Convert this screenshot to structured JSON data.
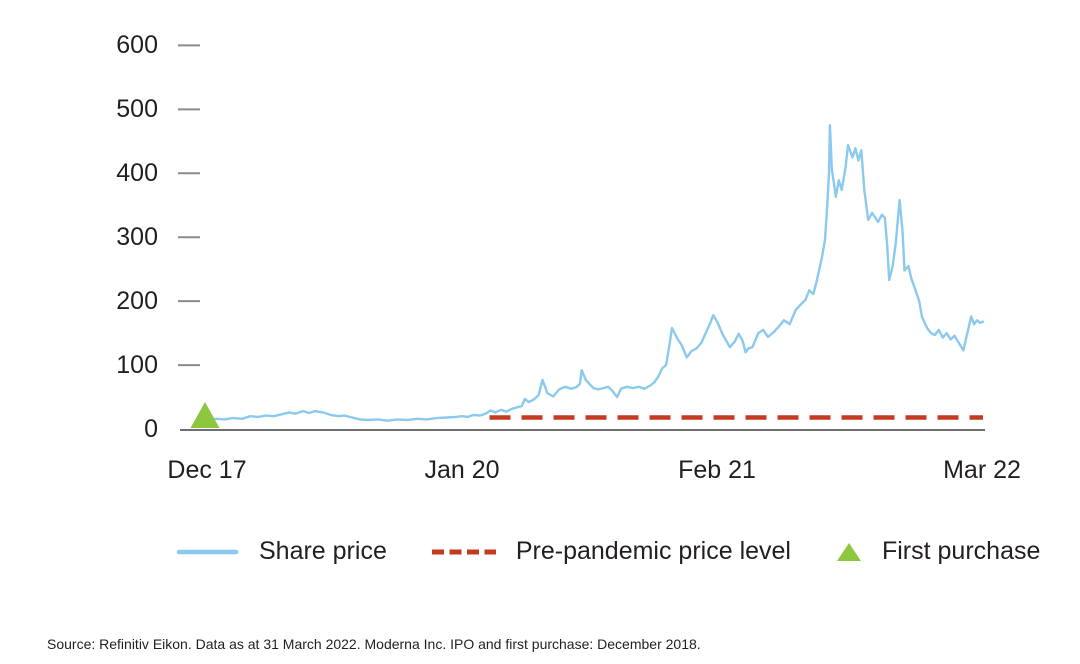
{
  "source": "Source: Refinitiv Eikon. Data as at 31 March 2022. Moderna Inc. IPO and first purchase: December 2018.",
  "colors": {
    "share_price_line": "#8BCAEE",
    "pre_pandemic_dash": "#C23A20",
    "first_purchase_marker": "#8DC63F",
    "axis_text": "#231f20",
    "tick_mark": "#8A8B8E",
    "axis_line": "#6E6F72"
  },
  "chart_data": {
    "type": "line",
    "title": "",
    "xlabel": "",
    "ylabel": "",
    "grid": false,
    "legend_position": "bottom",
    "ylim": [
      0,
      600
    ],
    "y_ticks": [
      0,
      100,
      200,
      300,
      400,
      500,
      600
    ],
    "x_tick_labels": [
      "Dec 17",
      "Jan 20",
      "Feb 21",
      "Mar 22"
    ],
    "x_tick_positions_months": [
      0,
      13,
      26,
      39
    ],
    "xlim_months": [
      0,
      39.55
    ],
    "series": [
      {
        "name": "Share price",
        "type": "line",
        "color": "#8BCAEE",
        "x_unit": "months after first axis label (13 months per label interval)",
        "points": [
          [
            0,
            18
          ],
          [
            0.15,
            15
          ],
          [
            0.5,
            16
          ],
          [
            0.9,
            15
          ],
          [
            1.3,
            17
          ],
          [
            1.8,
            16
          ],
          [
            2.2,
            20
          ],
          [
            2.6,
            19
          ],
          [
            3,
            21
          ],
          [
            3.4,
            20
          ],
          [
            3.8,
            23
          ],
          [
            4.2,
            26
          ],
          [
            4.5,
            24
          ],
          [
            4.9,
            28
          ],
          [
            5.2,
            25
          ],
          [
            5.5,
            28
          ],
          [
            5.9,
            26
          ],
          [
            6.3,
            22
          ],
          [
            6.7,
            20
          ],
          [
            7,
            21
          ],
          [
            7.4,
            18
          ],
          [
            7.8,
            15
          ],
          [
            8.2,
            14
          ],
          [
            8.7,
            15
          ],
          [
            9.2,
            13
          ],
          [
            9.7,
            15
          ],
          [
            10.2,
            14
          ],
          [
            10.7,
            16
          ],
          [
            11.2,
            15
          ],
          [
            11.7,
            17
          ],
          [
            12.2,
            18
          ],
          [
            12.7,
            19
          ],
          [
            13,
            20
          ],
          [
            13.3,
            19
          ],
          [
            13.6,
            22
          ],
          [
            13.9,
            21
          ],
          [
            14.2,
            24
          ],
          [
            14.45,
            29
          ],
          [
            14.7,
            26
          ],
          [
            15,
            30
          ],
          [
            15.25,
            27
          ],
          [
            15.5,
            31
          ],
          [
            15.8,
            34
          ],
          [
            16.05,
            36
          ],
          [
            16.2,
            47
          ],
          [
            16.4,
            42
          ],
          [
            16.65,
            46
          ],
          [
            16.9,
            53
          ],
          [
            17.1,
            77
          ],
          [
            17.35,
            56
          ],
          [
            17.65,
            51
          ],
          [
            17.95,
            62
          ],
          [
            18.25,
            66
          ],
          [
            18.55,
            63
          ],
          [
            18.8,
            65
          ],
          [
            19,
            70
          ],
          [
            19.1,
            92
          ],
          [
            19.3,
            77
          ],
          [
            19.5,
            70
          ],
          [
            19.7,
            64
          ],
          [
            19.95,
            62
          ],
          [
            20.2,
            64
          ],
          [
            20.45,
            66
          ],
          [
            20.65,
            60
          ],
          [
            20.9,
            50
          ],
          [
            21.1,
            63
          ],
          [
            21.4,
            66
          ],
          [
            21.7,
            64
          ],
          [
            22,
            66
          ],
          [
            22.3,
            63
          ],
          [
            22.6,
            68
          ],
          [
            22.8,
            73
          ],
          [
            23,
            82
          ],
          [
            23.2,
            95
          ],
          [
            23.4,
            100
          ],
          [
            23.55,
            128
          ],
          [
            23.7,
            158
          ],
          [
            23.85,
            149
          ],
          [
            24,
            140
          ],
          [
            24.2,
            131
          ],
          [
            24.45,
            112
          ],
          [
            24.7,
            122
          ],
          [
            24.95,
            126
          ],
          [
            25.2,
            135
          ],
          [
            25.45,
            152
          ],
          [
            25.65,
            166
          ],
          [
            25.8,
            178
          ],
          [
            26,
            168
          ],
          [
            26.3,
            147
          ],
          [
            26.65,
            128
          ],
          [
            26.9,
            137
          ],
          [
            27.1,
            149
          ],
          [
            27.3,
            138
          ],
          [
            27.45,
            120
          ],
          [
            27.6,
            126
          ],
          [
            27.8,
            128
          ],
          [
            28.1,
            150
          ],
          [
            28.35,
            155
          ],
          [
            28.6,
            144
          ],
          [
            28.9,
            152
          ],
          [
            29.2,
            162
          ],
          [
            29.4,
            170
          ],
          [
            29.7,
            164
          ],
          [
            30,
            186
          ],
          [
            30.3,
            196
          ],
          [
            30.5,
            202
          ],
          [
            30.7,
            217
          ],
          [
            30.9,
            211
          ],
          [
            31.05,
            228
          ],
          [
            31.2,
            248
          ],
          [
            31.35,
            270
          ],
          [
            31.5,
            296
          ],
          [
            31.6,
            343
          ],
          [
            31.7,
            400
          ],
          [
            31.75,
            475
          ],
          [
            31.85,
            405
          ],
          [
            31.95,
            385
          ],
          [
            32.05,
            363
          ],
          [
            32.2,
            389
          ],
          [
            32.35,
            374
          ],
          [
            32.55,
            410
          ],
          [
            32.67,
            444
          ],
          [
            32.9,
            425
          ],
          [
            33.05,
            439
          ],
          [
            33.2,
            420
          ],
          [
            33.35,
            436
          ],
          [
            33.5,
            374
          ],
          [
            33.7,
            327
          ],
          [
            33.9,
            338
          ],
          [
            34.2,
            324
          ],
          [
            34.4,
            335
          ],
          [
            34.55,
            330
          ],
          [
            34.66,
            291
          ],
          [
            34.77,
            233
          ],
          [
            34.95,
            255
          ],
          [
            35.1,
            290
          ],
          [
            35.3,
            358
          ],
          [
            35.45,
            310
          ],
          [
            35.55,
            248
          ],
          [
            35.75,
            255
          ],
          [
            35.9,
            235
          ],
          [
            36.1,
            218
          ],
          [
            36.3,
            200
          ],
          [
            36.45,
            175
          ],
          [
            36.7,
            158
          ],
          [
            36.9,
            150
          ],
          [
            37.1,
            147
          ],
          [
            37.3,
            155
          ],
          [
            37.5,
            143
          ],
          [
            37.7,
            150
          ],
          [
            37.9,
            140
          ],
          [
            38.1,
            146
          ],
          [
            38.3,
            136
          ],
          [
            38.55,
            123
          ],
          [
            38.75,
            150
          ],
          [
            38.95,
            176
          ],
          [
            39.1,
            164
          ],
          [
            39.25,
            170
          ],
          [
            39.4,
            166
          ],
          [
            39.55,
            168
          ]
        ]
      },
      {
        "name": "Pre-pandemic price level",
        "type": "dashed-horizontal-line",
        "color": "#C23A20",
        "value": 18,
        "x_start_months": 14.4,
        "x_end_months": 39.55
      },
      {
        "name": "First purchase",
        "type": "triangle-marker",
        "color": "#8DC63F",
        "point_months": 0,
        "point_price": 18
      }
    ]
  }
}
